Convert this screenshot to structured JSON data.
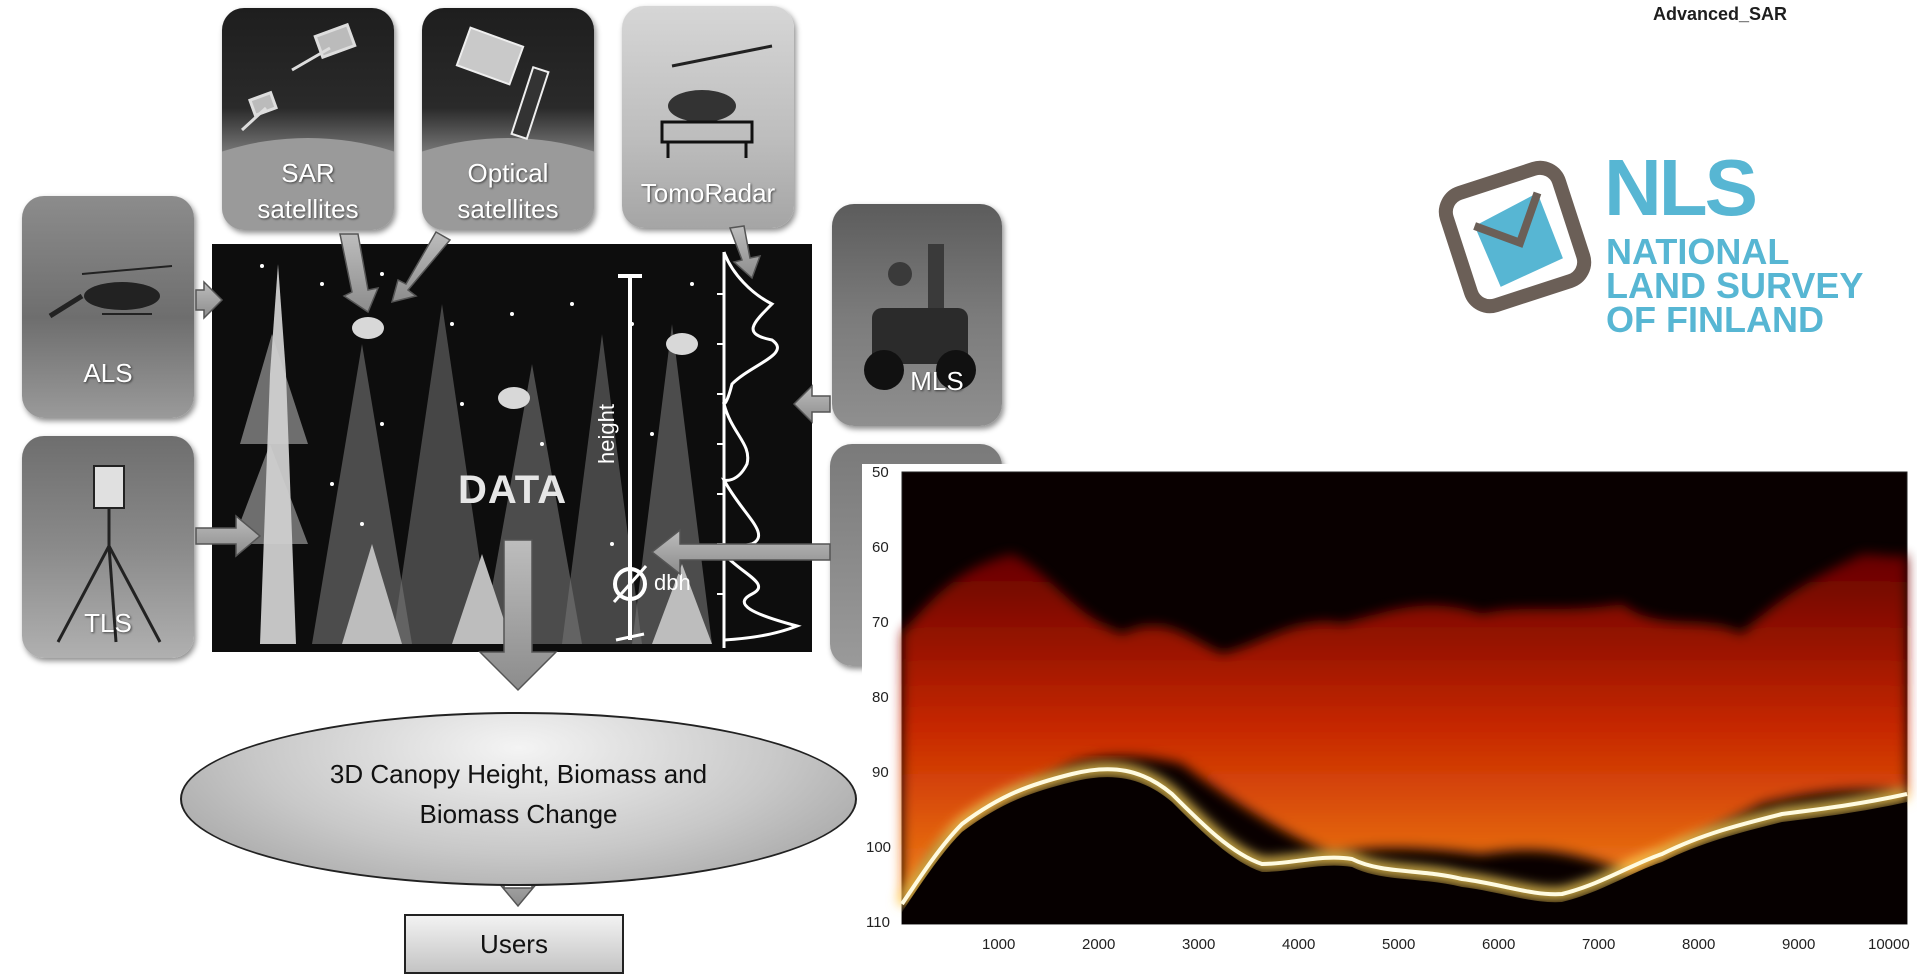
{
  "header": {
    "title": "Advanced_SAR"
  },
  "sources": {
    "sar": {
      "label_line1": "SAR",
      "label_line2": "satellites"
    },
    "optical": {
      "label_line1": "Optical",
      "label_line2": "satellites"
    },
    "tomoradar": {
      "label": "TomoRadar"
    },
    "als": {
      "label": "ALS"
    },
    "mls": {
      "label": "MLS"
    },
    "tls": {
      "label": "TLS"
    }
  },
  "data_panel": {
    "label": "DATA",
    "height_label": "height",
    "dbh_label": "dbh"
  },
  "pipeline": {
    "product_line1": "3D Canopy Height, Biomass and",
    "product_line2": "Biomass Change",
    "users": "Users"
  },
  "logo": {
    "acronym": "NLS",
    "line1": "NATIONAL",
    "line2": "LAND SURVEY",
    "line3": "OF FINLAND",
    "color": "#57b6d3",
    "frame_color": "#6b5f57"
  },
  "tomogram": {
    "y_ticks": [
      "50",
      "60",
      "70",
      "80",
      "90",
      "100",
      "110"
    ],
    "x_ticks": [
      "1000",
      "2000",
      "3000",
      "4000",
      "5000",
      "6000",
      "7000",
      "8000",
      "9000",
      "10000"
    ]
  }
}
